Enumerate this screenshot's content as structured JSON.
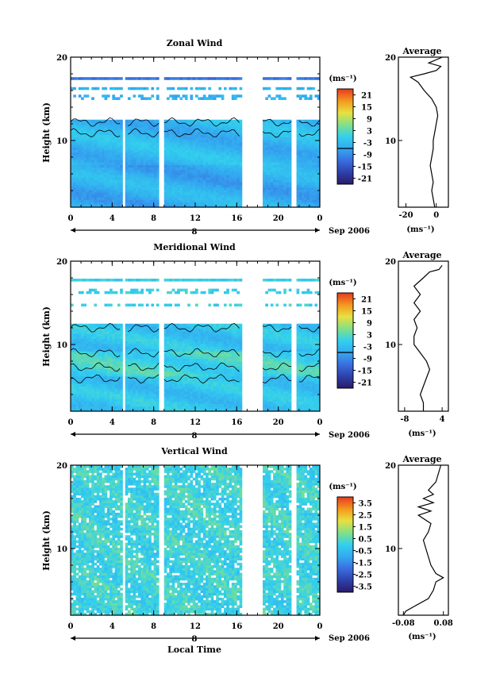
{
  "x_label": "Local Time",
  "cb_unit": "(ms⁻¹)",
  "avg_unit": "(ms⁻¹)",
  "avg_title": "Average",
  "date_label": "Sep 2006",
  "day_label": "8",
  "chart_data": [
    {
      "type": "heatmap",
      "title": "Zonal Wind",
      "ylabel": "Height (km)",
      "xlabel": "",
      "x_ticks": [
        "0",
        "4",
        "8",
        "12",
        "16",
        "20",
        "0"
      ],
      "xlim": [
        0,
        24
      ],
      "y_ticks": [
        "10",
        "20"
      ],
      "ylim": [
        2,
        20
      ],
      "date": "Sep 2006",
      "day_label": "8",
      "data_gaps_hours": [
        [
          5.0,
          5.3
        ],
        [
          8.6,
          9.0
        ],
        [
          16.5,
          18.5
        ],
        [
          21.3,
          21.8
        ]
      ],
      "echo_top_km": 12.2,
      "colorbar": {
        "unit": "(ms⁻¹)",
        "range": [
          -24,
          24
        ],
        "ticks": [
          "21",
          "15",
          "9",
          "3",
          "-3",
          "-9",
          "-15",
          "-21"
        ],
        "contour": 0
      },
      "profile": {
        "title": "Average",
        "xlabel": "(ms⁻¹)",
        "x_ticks": [
          "-20",
          "0"
        ],
        "xlim": [
          -25,
          8
        ],
        "y_ticks": [
          "10",
          "20"
        ],
        "ylim": [
          2,
          20
        ],
        "points": [
          [
            2,
            -1
          ],
          [
            3,
            -2
          ],
          [
            4,
            -3
          ],
          [
            5,
            -2
          ],
          [
            6,
            -3
          ],
          [
            7,
            -4
          ],
          [
            8,
            -3
          ],
          [
            9,
            -2
          ],
          [
            10,
            -2
          ],
          [
            11,
            -1
          ],
          [
            12,
            0
          ],
          [
            13,
            1
          ],
          [
            14,
            0
          ],
          [
            15,
            -3
          ],
          [
            16,
            -8
          ],
          [
            17,
            -12
          ],
          [
            17.6,
            -17
          ],
          [
            18,
            -8
          ],
          [
            18.4,
            0
          ],
          [
            18.9,
            3
          ],
          [
            19.3,
            -5
          ],
          [
            20,
            4
          ]
        ]
      }
    },
    {
      "type": "heatmap",
      "title": "Meridional Wind",
      "ylabel": "Height (km)",
      "xlabel": "",
      "x_ticks": [
        "0",
        "4",
        "8",
        "12",
        "16",
        "20",
        "0"
      ],
      "xlim": [
        0,
        24
      ],
      "y_ticks": [
        "10",
        "20"
      ],
      "ylim": [
        2,
        20
      ],
      "date": "Sep 2006",
      "day_label": "8",
      "data_gaps_hours": [
        [
          5.0,
          5.3
        ],
        [
          8.6,
          9.0
        ],
        [
          16.5,
          18.5
        ],
        [
          21.3,
          21.8
        ]
      ],
      "echo_top_km": 12.2,
      "colorbar": {
        "unit": "(ms⁻¹)",
        "range": [
          -24,
          24
        ],
        "ticks": [
          "21",
          "15",
          "9",
          "3",
          "-3",
          "-9",
          "-15",
          "-21"
        ],
        "contour": 0
      },
      "profile": {
        "title": "Average",
        "xlabel": "(ms⁻¹)",
        "x_ticks": [
          "-8",
          "4"
        ],
        "xlim": [
          -10,
          6
        ],
        "y_ticks": [
          "10",
          "20"
        ],
        "ylim": [
          2,
          20
        ],
        "points": [
          [
            2,
            -2
          ],
          [
            3,
            -2
          ],
          [
            4,
            -3
          ],
          [
            5,
            -2
          ],
          [
            6,
            -1
          ],
          [
            7,
            0
          ],
          [
            8,
            -1
          ],
          [
            9,
            -3
          ],
          [
            10,
            -5
          ],
          [
            11,
            -5
          ],
          [
            12,
            -4
          ],
          [
            13,
            -5
          ],
          [
            14,
            -3
          ],
          [
            15,
            -5
          ],
          [
            16,
            -3
          ],
          [
            17,
            -5
          ],
          [
            18,
            -2
          ],
          [
            18.7,
            0
          ],
          [
            19,
            3
          ],
          [
            19.5,
            4
          ]
        ]
      }
    },
    {
      "type": "heatmap",
      "title": "Vertical Wind",
      "ylabel": "Height (km)",
      "xlabel": "Local Time",
      "x_ticks": [
        "0",
        "4",
        "8",
        "12",
        "16",
        "20",
        "0"
      ],
      "xlim": [
        0,
        24
      ],
      "y_ticks": [
        "10",
        "20"
      ],
      "ylim": [
        2,
        20
      ],
      "date": "Sep 2006",
      "day_label": "8",
      "data_gaps_hours": [
        [
          5.0,
          5.3
        ],
        [
          8.6,
          9.0
        ],
        [
          16.5,
          18.5
        ],
        [
          21.3,
          21.8
        ]
      ],
      "echo_top_km": 20,
      "colorbar": {
        "unit": "(ms⁻¹)",
        "range": [
          -4,
          4
        ],
        "ticks": [
          "3.5",
          "2.5",
          "1.5",
          "0.5",
          "-0.5",
          "-1.5",
          "-2.5",
          "-3.5"
        ],
        "contour": null
      },
      "profile": {
        "title": "Average",
        "xlabel": "(ms⁻¹)",
        "x_ticks": [
          "-0.08",
          "0.08"
        ],
        "xlim": [
          -0.1,
          0.1
        ],
        "y_ticks": [
          "10",
          "20"
        ],
        "ylim": [
          2,
          20
        ],
        "points": [
          [
            2,
            -0.08
          ],
          [
            2.5,
            -0.07
          ],
          [
            3,
            -0.04
          ],
          [
            4,
            0.02
          ],
          [
            5,
            0.04
          ],
          [
            6,
            0.05
          ],
          [
            6.5,
            0.08
          ],
          [
            7,
            0.05
          ],
          [
            8,
            0.03
          ],
          [
            9,
            0.02
          ],
          [
            10,
            0.01
          ],
          [
            11,
            0.0
          ],
          [
            12,
            0.02
          ],
          [
            13,
            0.03
          ],
          [
            14,
            -0.02
          ],
          [
            14.5,
            0.03
          ],
          [
            15,
            -0.02
          ],
          [
            15.5,
            0.04
          ],
          [
            16,
            0.0
          ],
          [
            16.5,
            0.04
          ],
          [
            17,
            0.02
          ],
          [
            18,
            0.05
          ],
          [
            19,
            0.06
          ],
          [
            20,
            0.07
          ]
        ]
      }
    }
  ]
}
